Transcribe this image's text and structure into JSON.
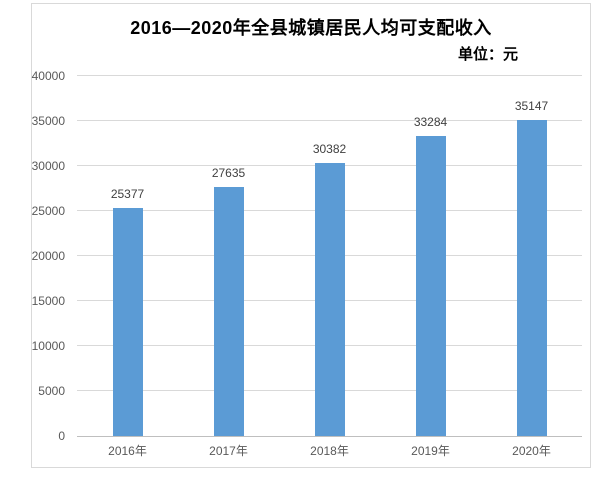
{
  "chart_data": {
    "type": "bar",
    "title": "2016—2020年全县城镇居民人均可支配收入",
    "unit_label": "单位：元",
    "categories": [
      "2016年",
      "2017年",
      "2018年",
      "2019年",
      "2020年"
    ],
    "values": [
      25377,
      27635,
      30382,
      33284,
      35147
    ],
    "data_labels": [
      "25377",
      "27635",
      "30382",
      "33284",
      "35147"
    ],
    "ylim": [
      0,
      40000
    ],
    "yticks": [
      0,
      5000,
      10000,
      15000,
      20000,
      25000,
      30000,
      35000,
      40000
    ],
    "grid": true,
    "legend": "none",
    "colors": {
      "bar_fill": "#5B9BD5",
      "gridline": "#D9D9D9",
      "axis_line": "#BFBFBF",
      "axis_label": "#595959",
      "data_label": "#404040",
      "title_text": "#000000",
      "frame_border": "#D9D9D9",
      "background": "#FFFFFF"
    }
  }
}
